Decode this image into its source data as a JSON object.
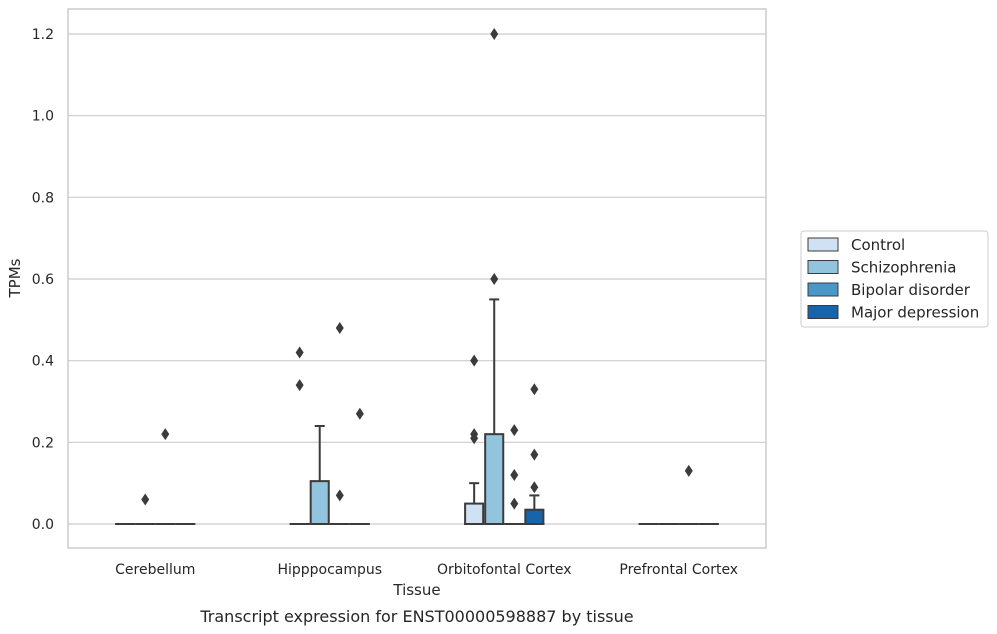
{
  "chart_data": {
    "type": "box",
    "caption": "Transcript expression for ENST00000598887 by tissue",
    "xlabel": "Tissue",
    "ylabel": "TPMs",
    "ylim": [
      -0.06,
      1.26
    ],
    "yticks": [
      0.0,
      0.2,
      0.4,
      0.6,
      0.8,
      1.0,
      1.2
    ],
    "ytick_labels": [
      "0.0",
      "0.2",
      "0.4",
      "0.6",
      "0.8",
      "1.0",
      "1.2"
    ],
    "grid": "horizontal",
    "legend_position": "right",
    "categories": [
      "Cerebellum",
      "Hipppocampus",
      "Orbitofontal Cortex",
      "Prefrontal Cortex"
    ],
    "series": [
      {
        "name": "Control",
        "color": "#cfe1f2"
      },
      {
        "name": "Schizophrenia",
        "color": "#93c4de"
      },
      {
        "name": "Bipolar disorder",
        "color": "#4a98c9"
      },
      {
        "name": "Major depression",
        "color": "#1764ab"
      }
    ],
    "boxes": [
      {
        "category": "Cerebellum",
        "series": "Control",
        "q1": 0,
        "median": 0,
        "q3": 0,
        "whisker_low": 0,
        "whisker_high": 0,
        "outliers": []
      },
      {
        "category": "Cerebellum",
        "series": "Schizophrenia",
        "q1": 0,
        "median": 0,
        "q3": 0,
        "whisker_low": 0,
        "whisker_high": 0,
        "outliers": [
          0.06
        ]
      },
      {
        "category": "Cerebellum",
        "series": "Bipolar disorder",
        "q1": 0,
        "median": 0,
        "q3": 0,
        "whisker_low": 0,
        "whisker_high": 0,
        "outliers": [
          0.22
        ]
      },
      {
        "category": "Cerebellum",
        "series": "Major depression",
        "q1": 0,
        "median": 0,
        "q3": 0,
        "whisker_low": 0,
        "whisker_high": 0,
        "outliers": []
      },
      {
        "category": "Hipppocampus",
        "series": "Control",
        "q1": 0,
        "median": 0,
        "q3": 0,
        "whisker_low": 0,
        "whisker_high": 0,
        "outliers": [
          0.34,
          0.42
        ]
      },
      {
        "category": "Hipppocampus",
        "series": "Schizophrenia",
        "q1": 0,
        "median": 0,
        "q3": 0.105,
        "whisker_low": 0,
        "whisker_high": 0.24,
        "outliers": []
      },
      {
        "category": "Hipppocampus",
        "series": "Bipolar disorder",
        "q1": 0,
        "median": 0,
        "q3": 0,
        "whisker_low": 0,
        "whisker_high": 0,
        "outliers": [
          0.07,
          0.48
        ]
      },
      {
        "category": "Hipppocampus",
        "series": "Major depression",
        "q1": 0,
        "median": 0,
        "q3": 0,
        "whisker_low": 0,
        "whisker_high": 0,
        "outliers": [
          0.27
        ]
      },
      {
        "category": "Orbitofontal Cortex",
        "series": "Control",
        "q1": 0,
        "median": 0,
        "q3": 0.05,
        "whisker_low": 0,
        "whisker_high": 0.1,
        "outliers": [
          0.21,
          0.22,
          0.4
        ]
      },
      {
        "category": "Orbitofontal Cortex",
        "series": "Schizophrenia",
        "q1": 0,
        "median": 0,
        "q3": 0.22,
        "whisker_low": 0,
        "whisker_high": 0.55,
        "outliers": [
          0.6,
          1.2
        ]
      },
      {
        "category": "Orbitofontal Cortex",
        "series": "Bipolar disorder",
        "q1": 0,
        "median": 0,
        "q3": 0,
        "whisker_low": 0,
        "whisker_high": 0,
        "outliers": [
          0.05,
          0.12,
          0.23
        ]
      },
      {
        "category": "Orbitofontal Cortex",
        "series": "Major depression",
        "q1": 0,
        "median": 0,
        "q3": 0.035,
        "whisker_low": 0,
        "whisker_high": 0.07,
        "outliers": [
          0.09,
          0.17,
          0.33
        ]
      },
      {
        "category": "Prefrontal Cortex",
        "series": "Control",
        "q1": 0,
        "median": 0,
        "q3": 0,
        "whisker_low": 0,
        "whisker_high": 0,
        "outliers": []
      },
      {
        "category": "Prefrontal Cortex",
        "series": "Schizophrenia",
        "q1": 0,
        "median": 0,
        "q3": 0,
        "whisker_low": 0,
        "whisker_high": 0,
        "outliers": []
      },
      {
        "category": "Prefrontal Cortex",
        "series": "Bipolar disorder",
        "q1": 0,
        "median": 0,
        "q3": 0,
        "whisker_low": 0,
        "whisker_high": 0,
        "outliers": [
          0.13
        ]
      },
      {
        "category": "Prefrontal Cortex",
        "series": "Major depression",
        "q1": 0,
        "median": 0,
        "q3": 0,
        "whisker_low": 0,
        "whisker_high": 0,
        "outliers": []
      }
    ]
  }
}
